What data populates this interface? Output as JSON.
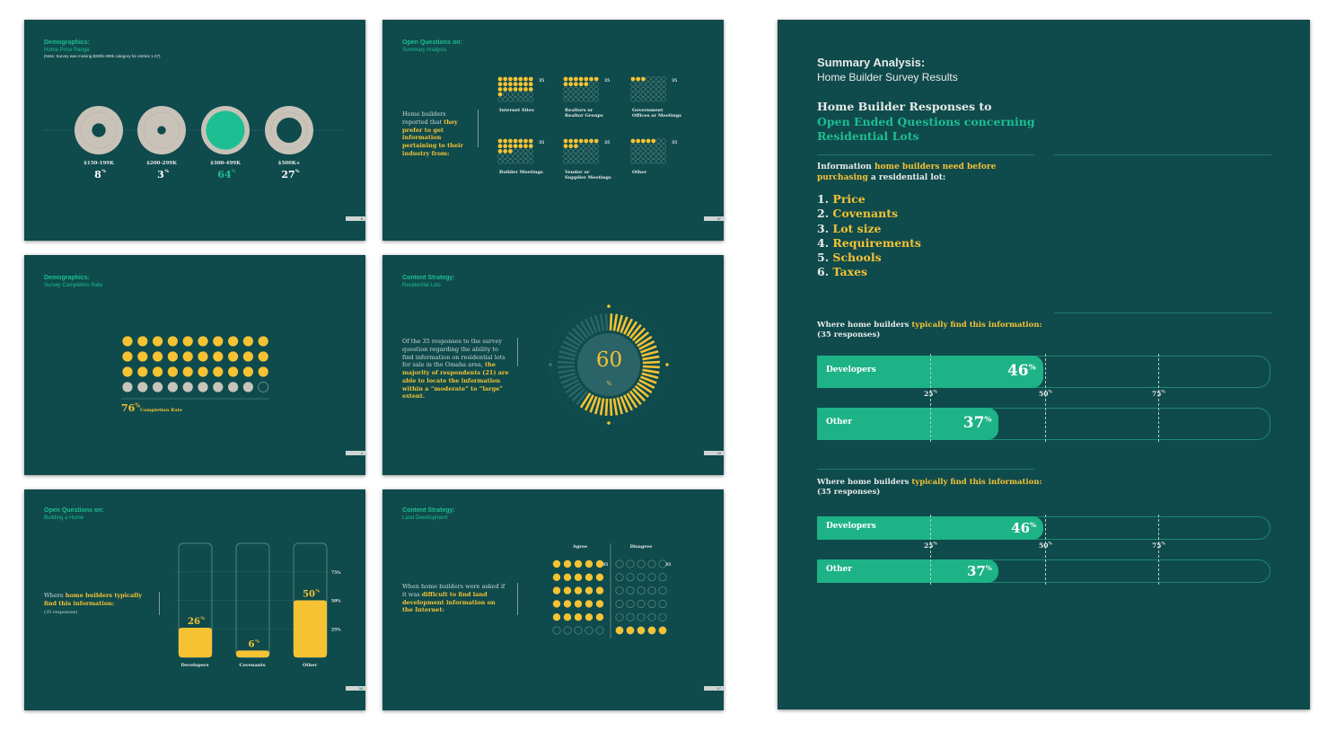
{
  "slide1": {
    "title": "Demographics:",
    "subtitle": "Home Price Range",
    "note": "(Note: Survey was missing $200k-299k category for entries 1-27)",
    "categories": [
      {
        "label": "$150-199K",
        "value": "8",
        "suffix": "%"
      },
      {
        "label": "$200-299K",
        "value": "3",
        "suffix": "%"
      },
      {
        "label": "$300-499K",
        "value": "64",
        "suffix": "%"
      },
      {
        "label": "$500K+",
        "value": "27",
        "suffix": "%"
      }
    ],
    "page": "8"
  },
  "slide2": {
    "title": "Open Questions on:",
    "subtitle": "Summary Analysis",
    "text_plain": "Home builders reported that",
    "text_hl": "they prefer to get information pertaining to their industry from:",
    "sources": [
      {
        "label1": "Internet Sites",
        "label2": "",
        "count": "35",
        "filled": 22
      },
      {
        "label1": "Realtors or",
        "label2": "Realtor Groups",
        "count": "35",
        "filled": 12
      },
      {
        "label1": "Government",
        "label2": "Offices or Meetings",
        "count": "35",
        "filled": 3
      },
      {
        "label1": "Builder Meetings",
        "label2": "",
        "count": "35",
        "filled": 17
      },
      {
        "label1": "Vendor or",
        "label2": "Supplier Meetings",
        "count": "35",
        "filled": 10
      },
      {
        "label1": "Other",
        "label2": "",
        "count": "35",
        "filled": 5
      }
    ],
    "page": "37"
  },
  "slide3": {
    "title": "Demographics:",
    "subtitle": "Survey Completion Rate",
    "rate": "76",
    "suffix": "%",
    "rate_label": "Completion Rate",
    "filled_dots": 30,
    "grey_dots": 9,
    "page": "4"
  },
  "slide4": {
    "title": "Content Strategy:",
    "subtitle": "Residential Lots",
    "text_plain": "Of the 35 responses to the survey question regarding the ability to find information on residential lots for sale in the Omaha area,",
    "text_hl": "the majority of respondents (21) are able to locate the information within a “moderate” to “large” extent.",
    "gauge_value": "60",
    "gauge_unit": "%",
    "page": "15"
  },
  "slide5": {
    "title": "Open Questions on:",
    "subtitle": "Building a Home",
    "text_plain": "Where",
    "text_hl": "home builders typically find this information:",
    "text_sub": "(35 responses)",
    "scale": [
      "75%",
      "50%",
      "25%"
    ],
    "bars": [
      {
        "label": "Developers",
        "value": "26",
        "pct": 26
      },
      {
        "label": "Covenants",
        "value": "6",
        "pct": 6
      },
      {
        "label": "Other",
        "value": "50",
        "pct": 50
      }
    ],
    "suffix": "%",
    "page": "34"
  },
  "slide6": {
    "title": "Content Strategy:",
    "subtitle": "Land Development",
    "text_plain": "When home builders were asked if it was",
    "text_hl": "difficult to find land development information on the Internet:",
    "agree_label": "Agree",
    "disagree_label": "Disagree",
    "agree_count": "35",
    "disagree_count": "35",
    "agree_filled": 30,
    "disagree_filled": 5,
    "page": "17"
  },
  "big": {
    "title": "Summary Analysis:",
    "subtitle": "Home Builder Survey Results",
    "heading1": "Home Builder Responses to",
    "heading2": "Open Ended Questions concerning Residential Lots",
    "info_plain1": "Information",
    "info_hl": "home builders need before purchasing",
    "info_plain2": "a residential lot:",
    "list": [
      {
        "num": "1.",
        "text": "Price"
      },
      {
        "num": "2.",
        "text": "Covenants"
      },
      {
        "num": "3.",
        "text": "Lot size"
      },
      {
        "num": "4.",
        "text": "Requirements"
      },
      {
        "num": "5.",
        "text": "Schools"
      },
      {
        "num": "6.",
        "text": "Taxes"
      }
    ],
    "where_plain": "Where home builders",
    "where_hl": "typically find this information:",
    "responses": "(35 responses)",
    "ticks": [
      "25",
      "50",
      "75"
    ],
    "suffix": "%",
    "bars": [
      {
        "label": "Developers",
        "value": "46",
        "pct": 46
      },
      {
        "label": "Other",
        "value": "37",
        "pct": 37
      }
    ]
  },
  "colors": {
    "bg": "#0f4a4c",
    "teal": "#1dbf92",
    "yellow": "#f5c234",
    "grey": "#c8c2b8"
  }
}
